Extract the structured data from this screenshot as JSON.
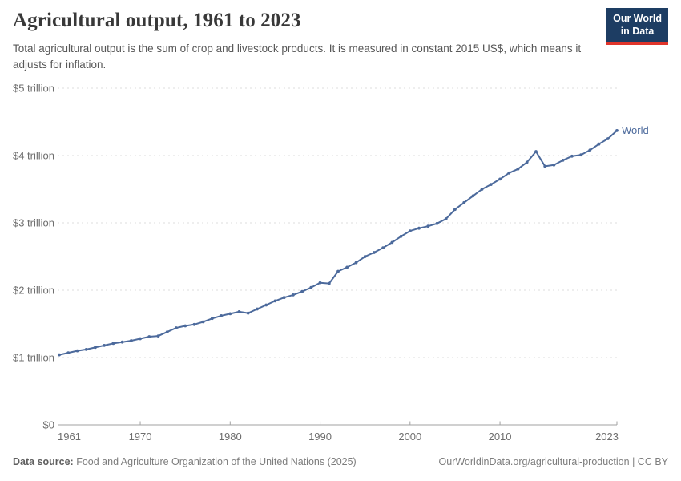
{
  "header": {
    "title": "Agricultural output, 1961 to 2023",
    "subtitle": "Total agricultural output is the sum of crop and livestock products. It is measured in constant 2015 US$, which means it adjusts for inflation.",
    "logo": {
      "line1": "Our World",
      "line2": "in Data",
      "bg_color": "#1d3d63",
      "accent_color": "#e0352b"
    }
  },
  "chart_data": {
    "type": "line",
    "title": "Agricultural output, 1961 to 2023",
    "unit": "constant 2015 US$ (trillions)",
    "xlim": [
      1961,
      2023
    ],
    "ylim": [
      0,
      5
    ],
    "grid": "horizontal-dashed",
    "legend_position": "end-of-line",
    "x_ticks": [
      1961,
      1970,
      1980,
      1990,
      2000,
      2010,
      2023
    ],
    "y_ticks": [
      {
        "value": 0,
        "label": "$0"
      },
      {
        "value": 1,
        "label": "$1 trillion"
      },
      {
        "value": 2,
        "label": "$2 trillion"
      },
      {
        "value": 3,
        "label": "$3 trillion"
      },
      {
        "value": 4,
        "label": "$4 trillion"
      },
      {
        "value": 5,
        "label": "$5 trillion"
      }
    ],
    "x": [
      1961,
      1962,
      1963,
      1964,
      1965,
      1966,
      1967,
      1968,
      1969,
      1970,
      1971,
      1972,
      1973,
      1974,
      1975,
      1976,
      1977,
      1978,
      1979,
      1980,
      1981,
      1982,
      1983,
      1984,
      1985,
      1986,
      1987,
      1988,
      1989,
      1990,
      1991,
      1992,
      1993,
      1994,
      1995,
      1996,
      1997,
      1998,
      1999,
      2000,
      2001,
      2002,
      2003,
      2004,
      2005,
      2006,
      2007,
      2008,
      2009,
      2010,
      2011,
      2012,
      2013,
      2014,
      2015,
      2016,
      2017,
      2018,
      2019,
      2020,
      2021,
      2022,
      2023
    ],
    "series": [
      {
        "name": "World",
        "color": "#4c6a9c",
        "values": [
          1.04,
          1.07,
          1.1,
          1.12,
          1.15,
          1.18,
          1.21,
          1.23,
          1.25,
          1.28,
          1.31,
          1.32,
          1.38,
          1.44,
          1.47,
          1.49,
          1.53,
          1.58,
          1.62,
          1.65,
          1.68,
          1.66,
          1.72,
          1.78,
          1.84,
          1.89,
          1.93,
          1.98,
          2.04,
          2.11,
          2.1,
          2.28,
          2.34,
          2.41,
          2.5,
          2.56,
          2.63,
          2.71,
          2.8,
          2.88,
          2.92,
          2.95,
          2.99,
          3.06,
          3.2,
          3.3,
          3.4,
          3.5,
          3.57,
          3.65,
          3.74,
          3.8,
          3.9,
          4.06,
          3.84,
          3.86,
          3.93,
          3.99,
          4.01,
          4.08,
          4.17,
          4.25,
          4.37
        ]
      }
    ],
    "axis_color": "#a2a2a2",
    "gridline_color": "#dcdcdc",
    "tick_label_color": "#6e6e6e"
  },
  "footer": {
    "data_source_label": "Data source:",
    "data_source_text": " Food and Agriculture Organization of the United Nations (2025)",
    "link_text": "OurWorldinData.org/agricultural-production",
    "license_text": " | CC BY"
  }
}
